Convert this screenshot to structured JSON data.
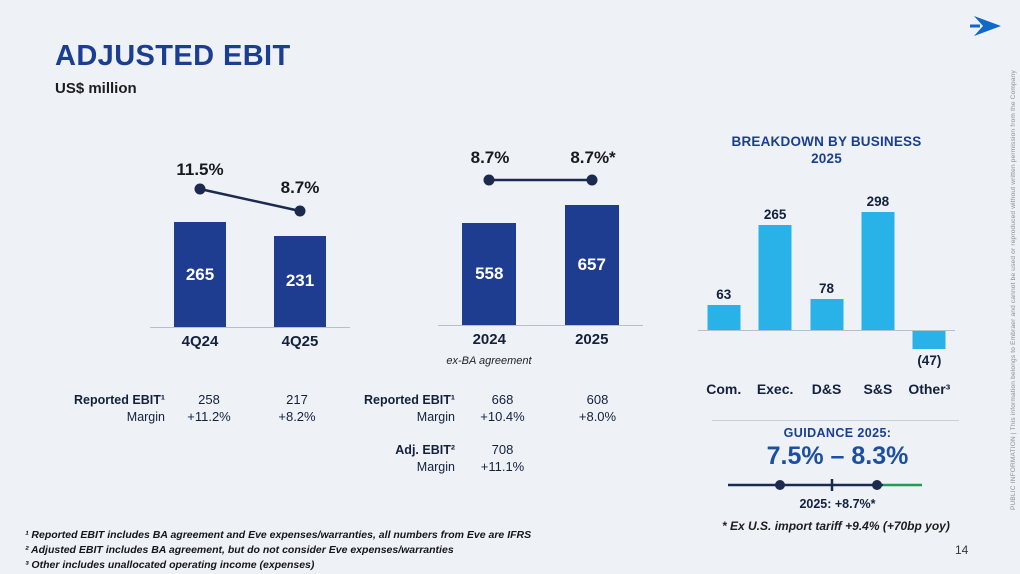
{
  "slide": {
    "title": "ADJUSTED EBIT",
    "subtitle": "US$ million",
    "page_number": "14",
    "side_note": "PUBLIC INFORMATION | This information belongs to Embraer and cannot be used or reproduced without written permission from the Company"
  },
  "colors": {
    "dark_blue_bar": "#1e3c90",
    "light_blue_bar": "#29b2e8",
    "title_blue": "#1b3e93",
    "trend_line": "#1b2a4e",
    "guidance_green": "#1f9d55"
  },
  "chart_data": [
    {
      "name": "quarterly_adjusted_ebit",
      "type": "bar",
      "categories": [
        "4Q24",
        "4Q25"
      ],
      "values": [
        265,
        231
      ],
      "bar_labels": [
        "265",
        "231"
      ],
      "bar_color": "#1e3c90",
      "label_pos": "inside",
      "margin_line": {
        "labels": [
          "11.5%",
          "8.7%"
        ],
        "values": [
          11.5,
          8.7
        ]
      }
    },
    {
      "name": "annual_adjusted_ebit",
      "type": "bar",
      "categories": [
        "2024",
        "2025"
      ],
      "values": [
        558,
        657
      ],
      "bar_labels": [
        "558",
        "657"
      ],
      "bar_color": "#1e3c90",
      "label_pos": "inside",
      "margin_line": {
        "labels": [
          "8.7%",
          "8.7%*"
        ],
        "values": [
          8.7,
          8.7
        ]
      },
      "x_note": "ex-BA agreement"
    },
    {
      "name": "breakdown_by_business_2025",
      "type": "bar",
      "title": "BREAKDOWN BY BUSINESS 2025",
      "categories": [
        "Com.",
        "Exec.",
        "D&S",
        "S&S",
        "Other³"
      ],
      "values": [
        63,
        265,
        78,
        298,
        -47
      ],
      "bar_labels": [
        "63",
        "265",
        "78",
        "298",
        "(47)"
      ],
      "bar_color": "#29b2e8",
      "label_pos": "outside"
    }
  ],
  "tables": {
    "quarterly": {
      "rows": [
        {
          "label": "Reported EBIT¹",
          "sublabel": "Margin",
          "cols": [
            {
              "value": "258",
              "margin": "+11.2%"
            },
            {
              "value": "217",
              "margin": "+8.2%"
            }
          ]
        }
      ]
    },
    "annual": {
      "rows": [
        {
          "label": "Reported EBIT¹",
          "sublabel": "Margin",
          "cols": [
            {
              "value": "668",
              "margin": "+10.4%"
            },
            {
              "value": "608",
              "margin": "+8.0%"
            }
          ]
        },
        {
          "label": "Adj. EBIT²",
          "sublabel": "Margin",
          "cols": [
            {
              "value": "708",
              "margin": "+11.1%"
            },
            {
              "value": "",
              "margin": ""
            }
          ]
        }
      ]
    }
  },
  "guidance": {
    "label": "GUIDANCE 2025:",
    "range": "7.5% – 8.3%",
    "actual": "2025: +8.7%*"
  },
  "footnotes": {
    "tariff": "* Ex U.S. import tariff +9.4% (+70bp yoy)",
    "notes": [
      "¹ Reported EBIT includes BA agreement and Eve expenses/warranties, all numbers from Eve are IFRS",
      "² Adjusted EBIT includes BA agreement, but do not consider Eve expenses/warranties",
      "³ Other includes unallocated operating income (expenses)"
    ]
  }
}
